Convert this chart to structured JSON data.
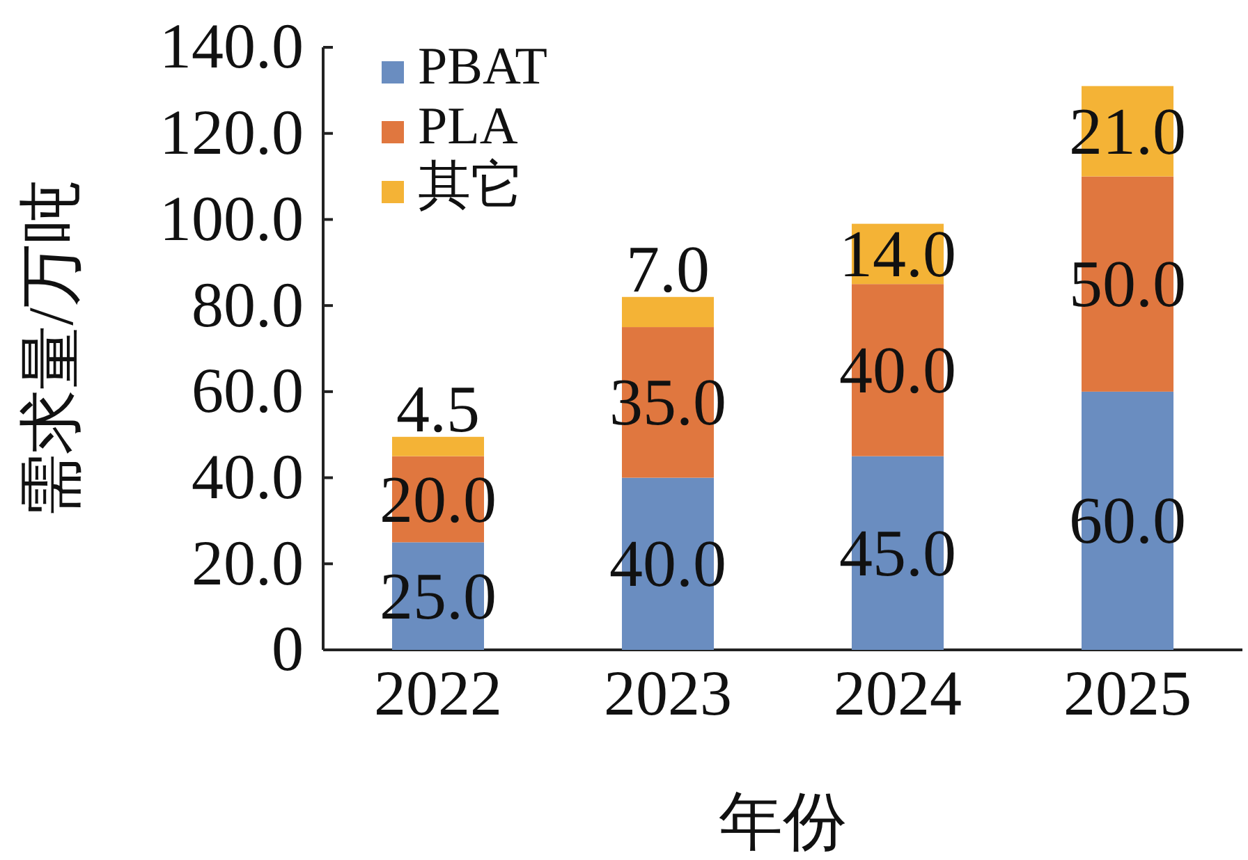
{
  "chart_data": {
    "type": "bar",
    "stacked": true,
    "xlabel": "年份",
    "ylabel": "需求量/万吨",
    "categories": [
      "2022",
      "2023",
      "2024",
      "2025"
    ],
    "series": [
      {
        "name": "PBAT",
        "color": "#6a8dc0",
        "values": [
          25,
          40,
          45,
          60
        ],
        "value_labels": [
          "25.0",
          "40.0",
          "45.0",
          "60.0"
        ]
      },
      {
        "name": "PLA",
        "color": "#e0773f",
        "values": [
          20,
          35,
          40,
          50
        ],
        "value_labels": [
          "20.0",
          "35.0",
          "40.0",
          "50.0"
        ]
      },
      {
        "name": "其它",
        "color": "#f4b336",
        "values": [
          4.5,
          7,
          14,
          21
        ],
        "value_labels": [
          "4.5",
          "7.0",
          "14.0",
          "21.0"
        ]
      }
    ],
    "ylim": [
      0,
      140
    ],
    "yticks": [
      0,
      {
        "value": 20,
        "label": "20.0"
      },
      {
        "value": 40,
        "label": "40.0"
      },
      {
        "value": 60,
        "label": "60.0"
      },
      {
        "value": 80,
        "label": "80.0"
      },
      {
        "value": 100,
        "label": "100.0"
      },
      {
        "value": 120,
        "label": "120.0"
      },
      {
        "value": 140,
        "label": "140.0"
      }
    ],
    "grid": false,
    "legend": "top left"
  }
}
